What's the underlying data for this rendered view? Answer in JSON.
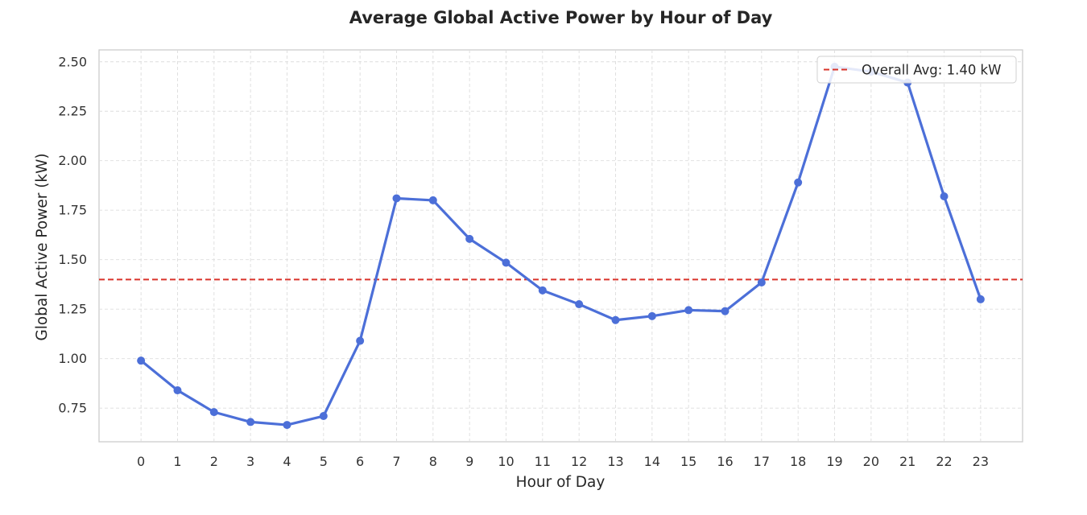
{
  "chart_data": {
    "type": "line",
    "title": "Average Global Active Power by Hour of Day",
    "xlabel": "Hour of Day",
    "ylabel": "Global Active Power (kW)",
    "x": [
      0,
      1,
      2,
      3,
      4,
      5,
      6,
      7,
      8,
      9,
      10,
      11,
      12,
      13,
      14,
      15,
      16,
      17,
      18,
      19,
      20,
      21,
      22,
      23
    ],
    "series": [
      {
        "values": [
          0.99,
          0.84,
          0.73,
          0.68,
          0.665,
          0.71,
          1.09,
          1.81,
          1.8,
          1.605,
          1.485,
          1.345,
          1.275,
          1.195,
          1.215,
          1.245,
          1.24,
          1.385,
          1.89,
          2.475,
          2.45,
          2.395,
          1.82,
          1.3
        ],
        "color": "#4c6fd8",
        "marker": "circle"
      }
    ],
    "reference_line": {
      "label": "Overall Avg: 1.40 kW",
      "value": 1.4,
      "color": "#d9342b",
      "style": "dashed"
    },
    "ylim": [
      0.58,
      2.56
    ],
    "xlim": [
      -1.15,
      24.15
    ],
    "yticks": [
      "0.75",
      "1.00",
      "1.25",
      "1.50",
      "1.75",
      "2.00",
      "2.25",
      "2.50"
    ],
    "xticks": [
      "0",
      "1",
      "2",
      "3",
      "4",
      "5",
      "6",
      "7",
      "8",
      "9",
      "10",
      "11",
      "12",
      "13",
      "14",
      "15",
      "16",
      "17",
      "18",
      "19",
      "20",
      "21",
      "22",
      "23"
    ],
    "grid": true,
    "legend_position": "top-right"
  }
}
